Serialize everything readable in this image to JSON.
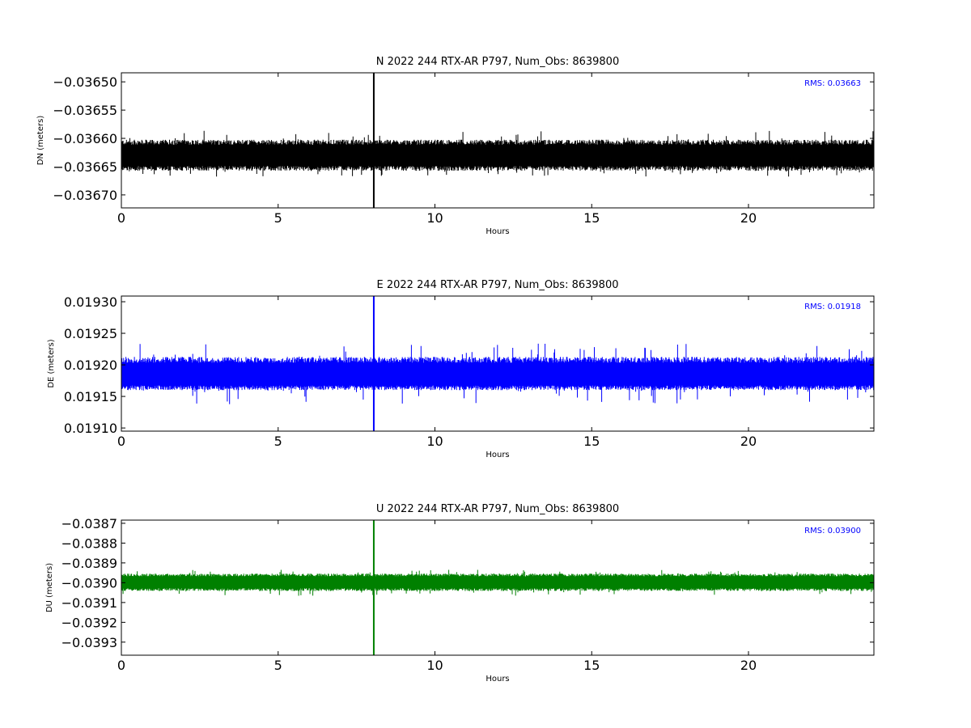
{
  "chart_data": [
    {
      "type": "line",
      "title": "N 2022 244 RTX-AR  P797, Num_Obs: 8639800",
      "xlabel": "Hours",
      "ylabel": "DN (meters)",
      "xlim": [
        0,
        24
      ],
      "ylim": [
        -0.036723,
        -0.036484
      ],
      "x_ticks": [
        0,
        5,
        10,
        15,
        20
      ],
      "x_tick_labels": [
        "0",
        "5",
        "10",
        "15",
        "20"
      ],
      "y_ticks": [
        -0.0365,
        -0.03655,
        -0.0366,
        -0.03665,
        -0.0367
      ],
      "y_tick_labels": [
        "−0.03650",
        "−0.03655",
        "−0.03660",
        "−0.03665",
        "−0.03670"
      ],
      "rms_text": "RMS:  0.03663",
      "color": "#000000",
      "rms_color": "#0000ff",
      "series": [
        {
          "mean": -0.036631,
          "band_upper": -0.036605,
          "band_lower": -0.036655,
          "noise_peak_max": -0.036586,
          "noise_peak_min": -0.036668,
          "spike_x": 8.05
        }
      ]
    },
    {
      "type": "line",
      "title": "E 2022 244 RTX-AR  P797, Num_Obs: 8639800",
      "xlabel": "Hours",
      "ylabel": "DE (meters)",
      "xlim": [
        0,
        24
      ],
      "ylim": [
        0.019095,
        0.019309
      ],
      "x_ticks": [
        0,
        5,
        10,
        15,
        20
      ],
      "x_tick_labels": [
        "0",
        "5",
        "10",
        "15",
        "20"
      ],
      "y_ticks": [
        0.0193,
        0.01925,
        0.0192,
        0.01915,
        0.0191
      ],
      "y_tick_labels": [
        "0.01930",
        "0.01925",
        "0.01920",
        "0.01915",
        "0.01910"
      ],
      "rms_text": "RMS:  0.01918",
      "color": "#0000ff",
      "rms_color": "#0000ff",
      "series": [
        {
          "mean": 0.019183,
          "band_upper": 0.01921,
          "band_lower": 0.019162,
          "noise_peak_max": 0.019234,
          "noise_peak_min": 0.019137,
          "spike_x": 8.05
        }
      ]
    },
    {
      "type": "line",
      "title": "U 2022 244 RTX-AR  P797, Num_Obs: 8639800",
      "xlabel": "Hours",
      "ylabel": "DU (meters)",
      "xlim": [
        0,
        24
      ],
      "ylim": [
        -0.039366,
        -0.038684
      ],
      "x_ticks": [
        0,
        5,
        10,
        15,
        20
      ],
      "x_tick_labels": [
        "0",
        "5",
        "10",
        "15",
        "20"
      ],
      "y_ticks": [
        -0.0387,
        -0.0388,
        -0.0389,
        -0.039,
        -0.0391,
        -0.0392,
        -0.0393
      ],
      "y_tick_labels": [
        "−0.0387",
        "−0.0388",
        "−0.0389",
        "−0.0390",
        "−0.0391",
        "−0.0392",
        "−0.0393"
      ],
      "rms_text": "RMS:  0.03900",
      "color": "#008000",
      "rms_color": "#0000ff",
      "series": [
        {
          "mean": -0.038998,
          "band_upper": -0.038958,
          "band_lower": -0.039038,
          "noise_peak_max": -0.038935,
          "noise_peak_min": -0.039066,
          "spike_x": 8.05
        }
      ]
    }
  ]
}
